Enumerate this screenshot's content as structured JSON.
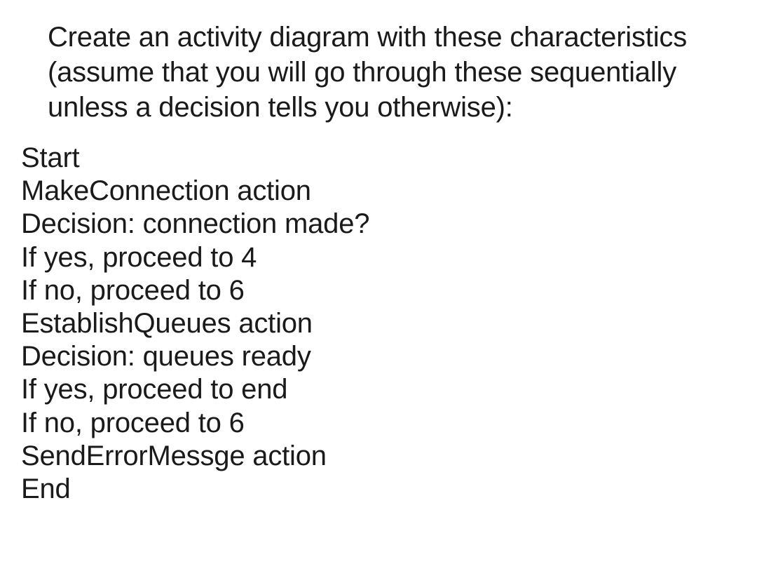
{
  "document": {
    "intro": "Create an activity diagram with these characteristics (assume that you will go through these sequentially unless a decision tells you otherwise):",
    "steps": [
      "Start",
      "MakeConnection action",
      "Decision: connection made?",
      "If yes, proceed to 4",
      "If no, proceed to 6",
      "EstablishQueues action",
      "Decision: queues ready",
      "If yes, proceed to end",
      "If no, proceed to 6",
      "SendErrorMessge action",
      "End"
    ],
    "colors": {
      "background": "#ffffff",
      "text": "#1a1a1a"
    },
    "typography": {
      "font_family": "sans-serif",
      "font_size_pt": 30,
      "font_weight": 300,
      "intro_line_height": 1.25,
      "steps_line_height": 1.18
    }
  }
}
